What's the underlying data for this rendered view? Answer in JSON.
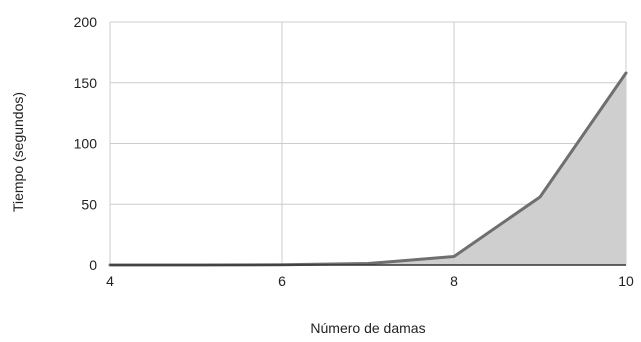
{
  "chart_data": {
    "type": "area",
    "title": "",
    "xlabel": "Número de damas",
    "ylabel": "Tiempo (segundos)",
    "x": [
      4,
      5,
      6,
      7,
      8,
      9,
      10
    ],
    "series": [
      {
        "values": [
          0.01,
          0.05,
          0.2,
          1.2,
          7,
          56,
          158
        ]
      }
    ],
    "xlim": [
      4,
      10
    ],
    "ylim": [
      0,
      200
    ],
    "xticks": [
      4,
      6,
      8,
      10
    ],
    "yticks": [
      0,
      50,
      100,
      150,
      200
    ],
    "grid": true,
    "legend": "none",
    "colors": {
      "line": "#6f6f6f",
      "fill": "#cccccc",
      "grid": "#cccccc",
      "axis": "#333333"
    }
  }
}
